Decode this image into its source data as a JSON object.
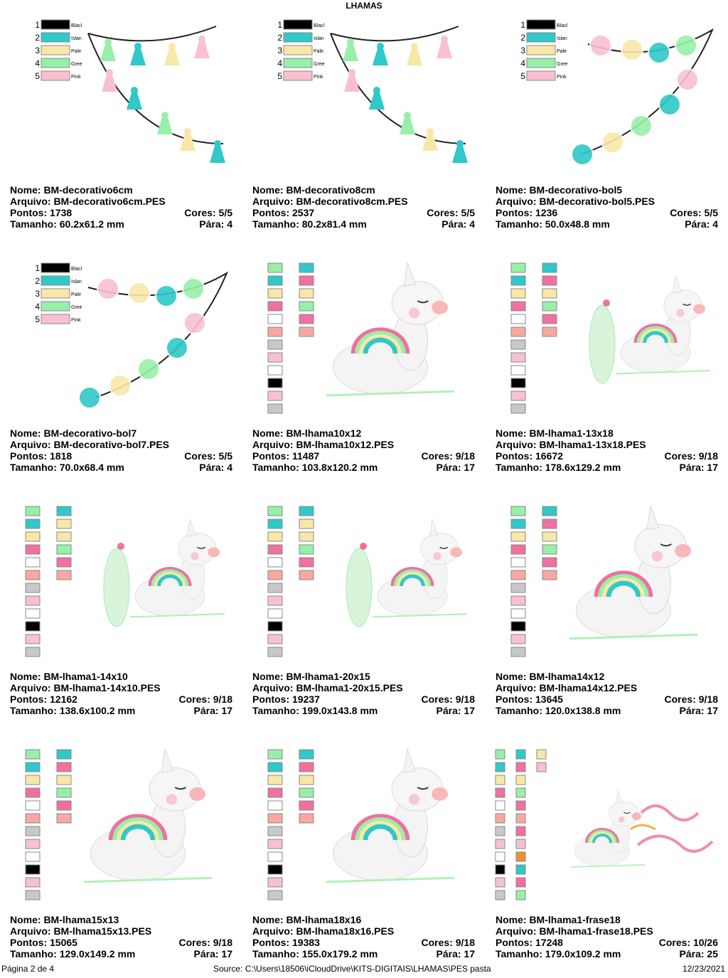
{
  "header": {
    "title": "LHAMAS"
  },
  "palette": [
    {
      "number": "1",
      "name": "Blacl",
      "color": "#000000"
    },
    {
      "number": "2",
      "name": "Islan",
      "color": "#30c8c8"
    },
    {
      "number": "3",
      "name": "Pale",
      "color": "#f8e8a8"
    },
    {
      "number": "4",
      "name": "Gree",
      "color": "#98f0a8"
    },
    {
      "number": "5",
      "name": "Pink",
      "color": "#f8c0d0"
    }
  ],
  "designs": [
    {
      "nome": "Nome: BM-decorativo6cm",
      "arquivo": "Arquivo: BM-decorativo6cm.PES",
      "pontos": "Pontos: 1738",
      "cores": "Cores: 5/5",
      "tamanho": "Tamanho: 60.2x61.2 mm",
      "para": "Pára: 4"
    },
    {
      "nome": "Nome: BM-decorativo8cm",
      "arquivo": "Arquivo: BM-decorativo8cm.PES",
      "pontos": "Pontos: 2537",
      "cores": "Cores: 5/5",
      "tamanho": "Tamanho: 80.2x81.4 mm",
      "para": "Pára: 4"
    },
    {
      "nome": "Nome: BM-decorativo-bol5",
      "arquivo": "Arquivo: BM-decorativo-bol5.PES",
      "pontos": "Pontos: 1236",
      "cores": "Cores: 5/5",
      "tamanho": "Tamanho: 50.0x48.8 mm",
      "para": "Pára: 4"
    },
    {
      "nome": "Nome: BM-decorativo-bol7",
      "arquivo": "Arquivo: BM-decorativo-bol7.PES",
      "pontos": "Pontos: 1818",
      "cores": "Cores: 5/5",
      "tamanho": "Tamanho: 70.0x68.4 mm",
      "para": "Pára: 4"
    },
    {
      "nome": "Nome: BM-lhama10x12",
      "arquivo": "Arquivo: BM-lhama10x12.PES",
      "pontos": "Pontos: 11487",
      "cores": "Cores: 9/18",
      "tamanho": "Tamanho: 103.8x120.2 mm",
      "para": "Pára: 17",
      "swatches": [
        [
          "#98f0a8",
          "#30c8c8",
          "#f8e8a8",
          "#f070a0",
          "#ffffff",
          "#f8a8a0",
          "#c8c8c8",
          "#f8c0d0",
          "#ffffff",
          "#000000",
          "#f8c0d8",
          "#c8c8c8"
        ],
        [
          "#30c8c8",
          "#f070a0",
          "#f8e8a8",
          "#98f0a8",
          "#f070a0",
          "#f8a8a0"
        ]
      ]
    },
    {
      "nome": "Nome: BM-lhama1-13x18",
      "arquivo": "Arquivo: BM-lhama1-13x18.PES",
      "pontos": "Pontos: 16672",
      "cores": "Cores: 9/18",
      "tamanho": "Tamanho: 178.6x129.2 mm",
      "para": "Pára: 17",
      "swatches": [
        [
          "#98f0a8",
          "#30c8c8",
          "#f8e8a8",
          "#f070a0",
          "#ffffff",
          "#f8a8a0",
          "#c8c8c8",
          "#f8c0d0",
          "#ffffff",
          "#000000",
          "#f8c0d8",
          "#c8c8c8"
        ],
        [
          "#30c8c8",
          "#f070a0",
          "#f8e8a8",
          "#98f0a8",
          "#f070a0",
          "#f8a8a0"
        ]
      ]
    },
    {
      "nome": "Nome: BM-lhama1-14x10",
      "arquivo": "Arquivo: BM-lhama1-14x10.PES",
      "pontos": "Pontos: 12162",
      "cores": "Cores: 9/18",
      "tamanho": "Tamanho: 138.6x100.2 mm",
      "para": "Pára: 17",
      "swatches": [
        [
          "#98f0a8",
          "#30c8c8",
          "#f8e8a8",
          "#f070a0",
          "#ffffff",
          "#f8a8a0",
          "#c8c8c8",
          "#f8c0d0",
          "#ffffff",
          "#000000",
          "#f8c0d8",
          "#c8c8c8"
        ],
        [
          "#30c8c8",
          "#f8e8a8",
          "#f8e8a8",
          "#98f0a8",
          "#f070a0",
          "#f8a8a0"
        ]
      ]
    },
    {
      "nome": "Nome: BM-lhama1-20x15",
      "arquivo": "Arquivo: BM-lhama1-20x15.PES",
      "pontos": "Pontos: 19237",
      "cores": "Cores: 9/18",
      "tamanho": "Tamanho: 199.0x143.8 mm",
      "para": "Pára: 17",
      "swatches": [
        [
          "#98f0a8",
          "#30c8c8",
          "#f8e8a8",
          "#f070a0",
          "#ffffff",
          "#f8a8a0",
          "#c8c8c8",
          "#f8c0d0",
          "#ffffff",
          "#000000",
          "#f8c0d8",
          "#c8c8c8"
        ],
        [
          "#30c8c8",
          "#f8e8a8",
          "#f8e8a8",
          "#98f0a8",
          "#f070a0",
          "#f8a8a0"
        ]
      ]
    },
    {
      "nome": "Nome: BM-lhama14x12",
      "arquivo": "Arquivo: BM-lhama14x12.PES",
      "pontos": "Pontos: 13645",
      "cores": "Cores: 9/18",
      "tamanho": "Tamanho: 120.0x138.8 mm",
      "para": "Pára: 17",
      "swatches": [
        [
          "#98f0a8",
          "#30c8c8",
          "#f8e8a8",
          "#f070a0",
          "#ffffff",
          "#f8a8a0",
          "#c8c8c8",
          "#f8c0d0",
          "#ffffff",
          "#000000",
          "#f8c0d8",
          "#c8c8c8"
        ],
        [
          "#30c8c8",
          "#f070a0",
          "#f8e8a8",
          "#98f0a8",
          "#f070a0",
          "#f8a8a0"
        ]
      ]
    },
    {
      "nome": "Nome: BM-lhama15x13",
      "arquivo": "Arquivo: BM-lhama15x13.PES",
      "pontos": "Pontos: 15065",
      "cores": "Cores: 9/18",
      "tamanho": "Tamanho: 129.0x149.2 mm",
      "para": "Pára: 17",
      "swatches": [
        [
          "#98f0a8",
          "#30c8c8",
          "#f8e8a8",
          "#f070a0",
          "#ffffff",
          "#f8a8a0",
          "#c8c8c8",
          "#f8c0d0",
          "#ffffff",
          "#000000",
          "#f8c0d8",
          "#c8c8c8"
        ],
        [
          "#30c8c8",
          "#f070a0",
          "#f8e8a8",
          "#98f0a8",
          "#f070a0",
          "#f8a8a0"
        ]
      ]
    },
    {
      "nome": "Nome: BM-lhama18x16",
      "arquivo": "Arquivo: BM-lhama18x16.PES",
      "pontos": "Pontos: 19383",
      "cores": "Cores: 9/18",
      "tamanho": "Tamanho: 155.0x179.2 mm",
      "para": "Pára: 17",
      "swatches": [
        [
          "#98f0a8",
          "#30c8c8",
          "#f8e8a8",
          "#f070a0",
          "#ffffff",
          "#f8a8a0",
          "#c8c8c8",
          "#f8c0d0",
          "#ffffff",
          "#000000",
          "#f8c0d8",
          "#c8c8c8"
        ],
        [
          "#30c8c8",
          "#f070a0",
          "#f8e8a8",
          "#98f0a8",
          "#f070a0",
          "#f8a8a0"
        ]
      ]
    },
    {
      "nome": "Nome: BM-lhama1-frase18",
      "arquivo": "Arquivo: BM-lhama1-frase18.PES",
      "pontos": "Pontos: 17248",
      "cores": "Cores: 10/26",
      "tamanho": "Tamanho: 179.0x109.2 mm",
      "para": "Pára: 25",
      "swatches": [
        [
          "#98f0a8",
          "#30c8c8",
          "#f8e8a8",
          "#f070a0",
          "#ffffff",
          "#f8a8a0",
          "#c8c8c8",
          "#f8c0d0",
          "#ffffff",
          "#000000",
          "#f8c0d8",
          "#c8c8c8"
        ],
        [
          "#30c8c8",
          "#f070a0",
          "#f8e8a8",
          "#98f0a8",
          "#f070a0",
          "#f8a8a0",
          "#f070a0",
          "#f8c0d0",
          "#f09030",
          "#30c8c8",
          "#f070a0",
          "#98f0a8"
        ],
        [
          "#f8e8a8",
          "#f8c0d0"
        ]
      ]
    }
  ],
  "footer": {
    "page": "Página 2 de 4",
    "source": "Source: C:\\Users\\18506\\iCloudDrive\\KITS-DIGITAIS\\LHAMAS\\PES pasta",
    "date": "12/23/2021"
  }
}
